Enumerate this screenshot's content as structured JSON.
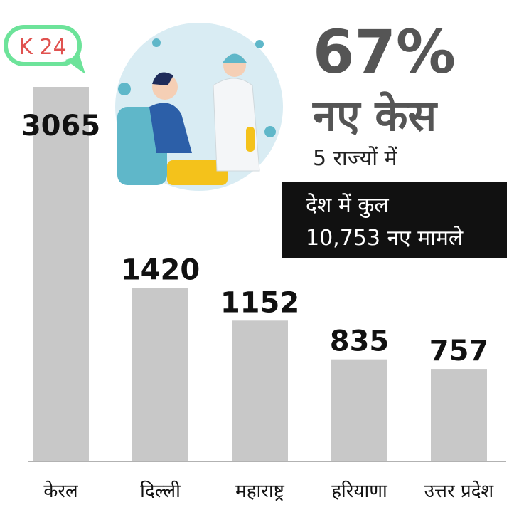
{
  "chart_data": {
    "type": "bar",
    "logo": "K 24",
    "headline": "67%",
    "headline_sub": "नए केस",
    "subtitle": "5 राज्यों में",
    "note_lines": [
      "देश में कुल",
      "10,753 नए मामले"
    ],
    "categories": [
      "केरल",
      "दिल्ली",
      "महाराष्ट्र",
      "हरियाणा",
      "उत्तर प्रदेश"
    ],
    "values": [
      3065,
      1420,
      1152,
      835,
      757
    ],
    "color": "#c8c8c8"
  }
}
